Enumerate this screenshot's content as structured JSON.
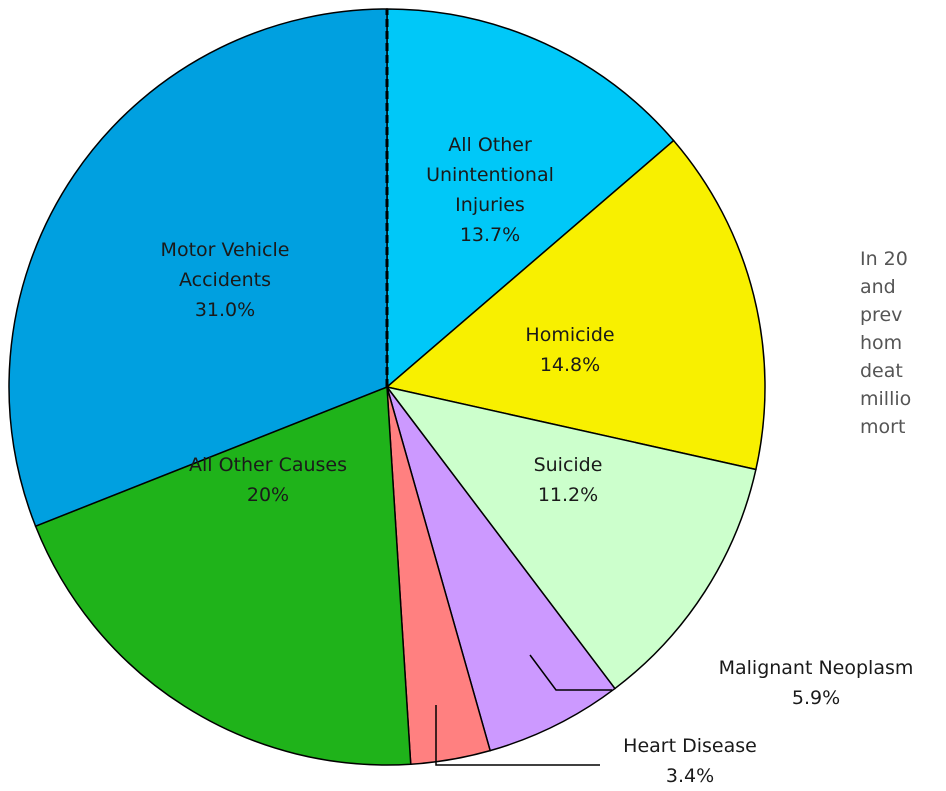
{
  "chart_data": {
    "type": "pie",
    "categories": [
      "All Other Unintentional Injuries",
      "Homicide",
      "Suicide",
      "Malignant Neoplasm",
      "Heart Disease",
      "All Other Causes",
      "Motor Vehicle Accidents"
    ],
    "values": [
      13.7,
      14.8,
      11.2,
      5.9,
      3.4,
      20,
      31.0
    ],
    "value_labels": [
      "13.7%",
      "14.8%",
      "11.2%",
      "5.9%",
      "3.4%",
      "20%",
      "31.0%"
    ],
    "colors": [
      "#00c8f8",
      "#f8f000",
      "#ccffcc",
      "#cc99ff",
      "#ff8080",
      "#1fb31a",
      "#00a0e0"
    ],
    "annotation": [
      "In 20",
      "and",
      "prev",
      "hom",
      "deat",
      "millio",
      "mort"
    ]
  }
}
